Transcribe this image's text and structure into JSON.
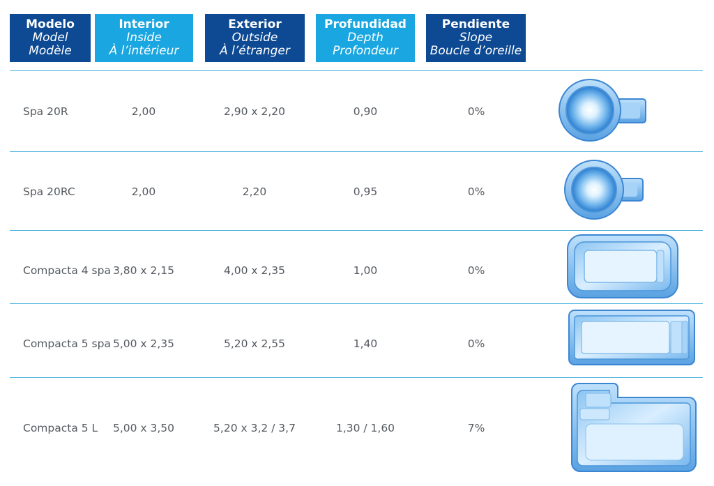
{
  "headers": [
    {
      "main": "Modelo",
      "sub1": "Model",
      "sub2": "Modèle",
      "color": "#0d4a93"
    },
    {
      "main": "Interior",
      "sub1": "Inside",
      "sub2": "À l’intérieur",
      "color": "#1aa6e0"
    },
    {
      "main": "Exterior",
      "sub1": "Outside",
      "sub2": "À l’étranger",
      "color": "#0d4a93"
    },
    {
      "main": "Profundidad",
      "sub1": "Depth",
      "sub2": "Profondeur",
      "color": "#1aa6e0"
    },
    {
      "main": "Pendiente",
      "sub1": "Slope",
      "sub2": "Boucle d’oreille",
      "color": "#0d4a93"
    }
  ],
  "rows": [
    {
      "model": "Spa 20R",
      "inside": "2,00",
      "outside": "2,90 x 2,20",
      "depth": "0,90",
      "slope": "0%",
      "shape": "round-spa-long-step"
    },
    {
      "model": "Spa 20RC",
      "inside": "2,00",
      "outside": "2,20",
      "depth": "0,95",
      "slope": "0%",
      "shape": "round-spa-short-step"
    },
    {
      "model": "Compacta 4 spa",
      "inside": "3,80 x 2,15",
      "outside": "4,00 x 2,35",
      "depth": "1,00",
      "slope": "0%",
      "shape": "rounded-rectangle-pool"
    },
    {
      "model": "Compacta 5 spa",
      "inside": "5,00 x 2,35",
      "outside": "5,20 x 2,55",
      "depth": "1,40",
      "slope": "0%",
      "shape": "rectangle-pool-with-bench"
    },
    {
      "model": "Compacta 5 L",
      "inside": "5,00 x 3,50",
      "outside": "5,20 x 3,2 / 3,7",
      "depth": "1,30 / 1,60",
      "slope": "7%",
      "shape": "l-shaped-pool"
    }
  ]
}
